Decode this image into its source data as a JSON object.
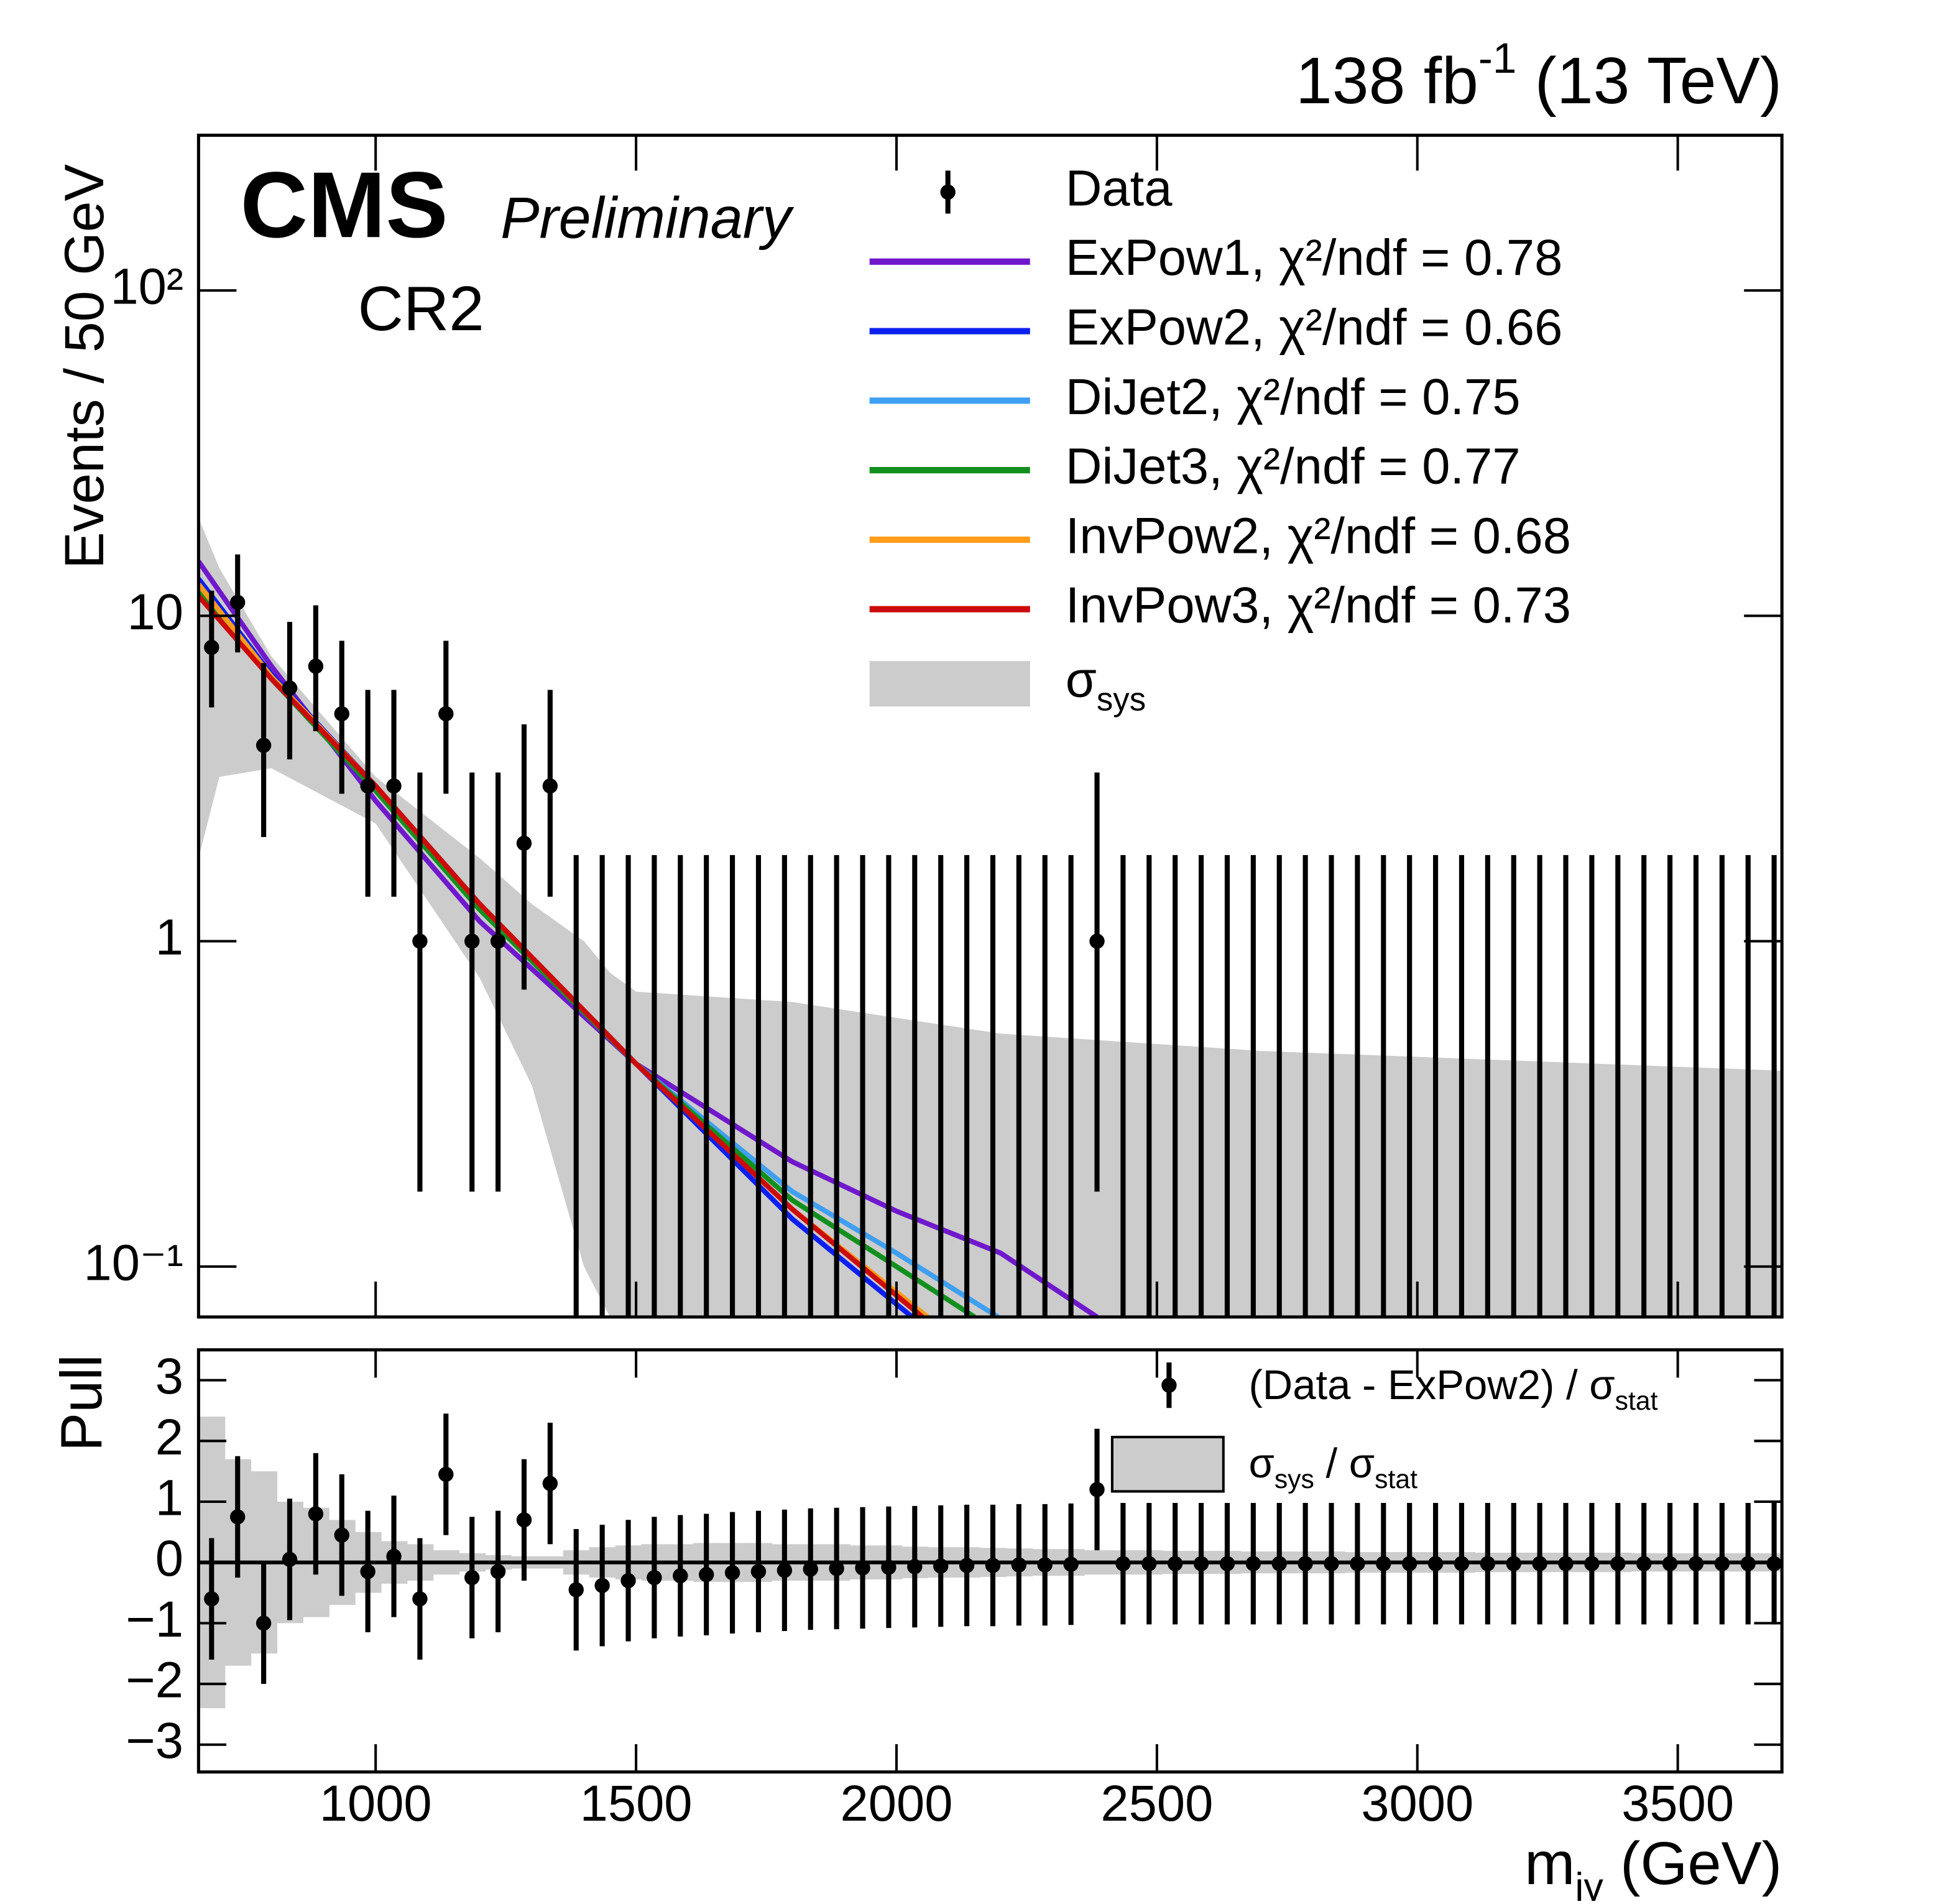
{
  "chart_data": [
    {
      "type": "fit",
      "lumi": [
        "138 fb",
        "-1",
        " (13 TeV)"
      ],
      "experiment": "CMS",
      "status": "Preliminary",
      "region": "CR2",
      "ylabel": "Events / 50 GeV",
      "ylog": true,
      "ylim": [
        0.07,
        300
      ],
      "yticks": [
        {
          "value": 0.1,
          "label": "10⁻¹"
        },
        1,
        10,
        {
          "value": 100,
          "label": "10²"
        }
      ],
      "x": [
        685,
        735,
        785,
        835,
        885,
        935,
        985,
        1035,
        1085,
        1135,
        1185,
        1235,
        1285,
        1335,
        1385,
        1435,
        1485,
        1535,
        1585,
        1635,
        1685,
        1735,
        1785,
        1835,
        1885,
        1935,
        1985,
        2035,
        2085,
        2135,
        2185,
        2235,
        2285,
        2335,
        2385,
        2435,
        2485,
        2535,
        2585,
        2635,
        2685,
        2735,
        2785,
        2835,
        2885,
        2935,
        2985,
        3035,
        3085,
        3135,
        3185,
        3235,
        3285,
        3335,
        3385,
        3435,
        3485,
        3535,
        3585,
        3635,
        3685
      ],
      "data": {
        "name": "Data",
        "color": "#000000",
        "values": [
          8,
          11,
          4,
          6,
          7,
          5,
          3,
          3,
          1,
          5,
          1,
          1,
          2,
          3,
          0,
          0,
          0,
          0,
          0,
          0,
          0,
          0,
          0,
          0,
          0,
          0,
          0,
          0,
          0,
          0,
          0,
          0,
          0,
          0,
          1,
          0,
          0,
          0,
          0,
          0,
          0,
          0,
          0,
          0,
          0,
          0,
          0,
          0,
          0,
          0,
          0,
          0,
          0,
          0,
          0,
          0,
          0,
          0,
          0,
          0,
          0
        ],
        "err_low": [
          2.77,
          3.28,
          1.91,
          2.38,
          2.58,
          2.16,
          1.63,
          1.63,
          0.83,
          2.16,
          0.83,
          0.83,
          1.29,
          1.63,
          0,
          0,
          0,
          0,
          0,
          0,
          0,
          0,
          0,
          0,
          0,
          0,
          0,
          0,
          0,
          0,
          0,
          0,
          0,
          0,
          0.83,
          0,
          0,
          0,
          0,
          0,
          0,
          0,
          0,
          0,
          0,
          0,
          0,
          0,
          0,
          0,
          0,
          0,
          0,
          0,
          0,
          0,
          0,
          0,
          0,
          0,
          0
        ],
        "err_high": [
          3.95,
          4.44,
          3.16,
          3.58,
          3.77,
          3.38,
          2.92,
          2.92,
          2.3,
          3.38,
          2.3,
          2.3,
          2.64,
          2.92,
          1.84,
          1.84,
          1.84,
          1.84,
          1.84,
          1.84,
          1.84,
          1.84,
          1.84,
          1.84,
          1.84,
          1.84,
          1.84,
          1.84,
          1.84,
          1.84,
          1.84,
          1.84,
          1.84,
          1.84,
          2.3,
          1.84,
          1.84,
          1.84,
          1.84,
          1.84,
          1.84,
          1.84,
          1.84,
          1.84,
          1.84,
          1.84,
          1.84,
          1.84,
          1.84,
          1.84,
          1.84,
          1.84,
          1.84,
          1.84,
          1.84,
          1.84,
          1.84,
          1.84,
          1.84,
          1.84,
          1.84
        ]
      },
      "series": [
        {
          "name": "ExPow1, χ²/ndf = 0.78",
          "color": "#7018cc",
          "x": [
            660,
            800,
            1000,
            1200,
            1500,
            1800,
            2000,
            2200,
            2385
          ],
          "values": [
            14.7,
            7.0,
            2.7,
            1.15,
            0.42,
            0.21,
            0.148,
            0.11,
            0.07
          ]
        },
        {
          "name": "ExPow2, χ²/ndf = 0.66",
          "color": "#0a1ff0",
          "x": [
            660,
            800,
            1000,
            1200,
            1500,
            1800,
            2030
          ],
          "values": [
            13,
            6.6,
            3.0,
            1.3,
            0.42,
            0.14,
            0.07
          ]
        },
        {
          "name": "DiJet2, χ²/ndf = 0.75",
          "color": "#3f9ff0",
          "x": [
            660,
            800,
            1000,
            1200,
            1500,
            1800,
            2000,
            2195
          ],
          "values": [
            12.5,
            6.4,
            2.9,
            1.25,
            0.42,
            0.17,
            0.11,
            0.07
          ]
        },
        {
          "name": "DiJet3, χ²/ndf = 0.77",
          "color": "#12901e",
          "x": [
            660,
            800,
            1000,
            1200,
            1500,
            1800,
            2000,
            2150
          ],
          "values": [
            12,
            6.4,
            2.9,
            1.25,
            0.42,
            0.16,
            0.1,
            0.07
          ]
        },
        {
          "name": "InvPow2, χ²/ndf = 0.68",
          "color": "#ff9c1a",
          "x": [
            660,
            800,
            1000,
            1200,
            1500,
            1800,
            2060
          ],
          "values": [
            12.5,
            6.5,
            3.0,
            1.3,
            0.42,
            0.15,
            0.07
          ]
        },
        {
          "name": "InvPow3, χ²/ndf = 0.73",
          "color": "#cc0a0a",
          "x": [
            660,
            800,
            1000,
            1200,
            1500,
            1800,
            2050
          ],
          "values": [
            11.5,
            6.4,
            3.0,
            1.3,
            0.42,
            0.15,
            0.07
          ]
        }
      ],
      "band": {
        "name": [
          "σ",
          "sys"
        ],
        "color": "#cccccc",
        "x": [
          660,
          700,
          800,
          1000,
          1200,
          1300,
          1400,
          1450,
          1500,
          1800,
          2200,
          2700,
          3700
        ],
        "upper": [
          20,
          14,
          7.5,
          3.2,
          1.8,
          1.3,
          1.0,
          0.8,
          0.7,
          0.65,
          0.52,
          0.46,
          0.4
        ],
        "lower": [
          1.8,
          3.2,
          3.4,
          2.3,
          0.77,
          0.36,
          0.1,
          0.07,
          0.02,
          0.01,
          0.01,
          0.01,
          0.01
        ]
      }
    },
    {
      "type": "pull",
      "ylabel": "Pull",
      "xlabel": [
        "m",
        "jγ",
        " (GeV)"
      ],
      "xlim": [
        660,
        3700
      ],
      "xticks": [
        1000,
        1500,
        2000,
        2500,
        3000,
        3500
      ],
      "ylim": [
        -3.45,
        3.5
      ],
      "yticks": [
        {
          "value": -3,
          "label": "−3"
        },
        {
          "value": -2,
          "label": "−2"
        },
        {
          "value": -1,
          "label": "−1"
        },
        0,
        1,
        2,
        3
      ],
      "name": [
        "(Data - ExPow2) / σ",
        "stat"
      ],
      "color": "#000000",
      "values": [
        -0.6,
        0.75,
        -1.0,
        0.05,
        0.8,
        0.45,
        -0.15,
        0.1,
        -0.6,
        1.45,
        -0.25,
        -0.15,
        0.7,
        1.3,
        -0.45,
        -0.38,
        -0.3,
        -0.25,
        -0.22,
        -0.2,
        -0.17,
        -0.15,
        -0.13,
        -0.11,
        -0.1,
        -0.09,
        -0.08,
        -0.07,
        -0.06,
        -0.05,
        -0.05,
        -0.04,
        -0.04,
        -0.03,
        1.2,
        -0.02,
        -0.02,
        -0.02,
        -0.02,
        -0.02,
        -0.02,
        -0.02,
        -0.02,
        -0.02,
        -0.02,
        -0.02,
        -0.02,
        -0.02,
        -0.02,
        -0.02,
        -0.02,
        -0.02,
        -0.02,
        -0.02,
        -0.02,
        -0.02,
        -0.02,
        -0.02,
        -0.02,
        -0.02,
        -0.02
      ],
      "error": 1,
      "band": {
        "name": [
          "σ",
          "sys",
          " / σ",
          "stat"
        ],
        "color": "#cccccc",
        "values": [
          2.4,
          1.7,
          1.5,
          1.0,
          0.9,
          0.7,
          0.5,
          0.35,
          0.3,
          0.2,
          0.15,
          0.12,
          0.1,
          0.1,
          0.2,
          0.25,
          0.28,
          0.3,
          0.3,
          0.32,
          0.32,
          0.32,
          0.3,
          0.3,
          0.3,
          0.28,
          0.28,
          0.26,
          0.25,
          0.25,
          0.24,
          0.23,
          0.22,
          0.22,
          0.2,
          0.2,
          0.2,
          0.19,
          0.19,
          0.19,
          0.18,
          0.18,
          0.18,
          0.18,
          0.17,
          0.17,
          0.17,
          0.17,
          0.17,
          0.16,
          0.16,
          0.16,
          0.16,
          0.16,
          0.16,
          0.15,
          0.15,
          0.15,
          0.15,
          0.15,
          0.15
        ]
      }
    }
  ]
}
